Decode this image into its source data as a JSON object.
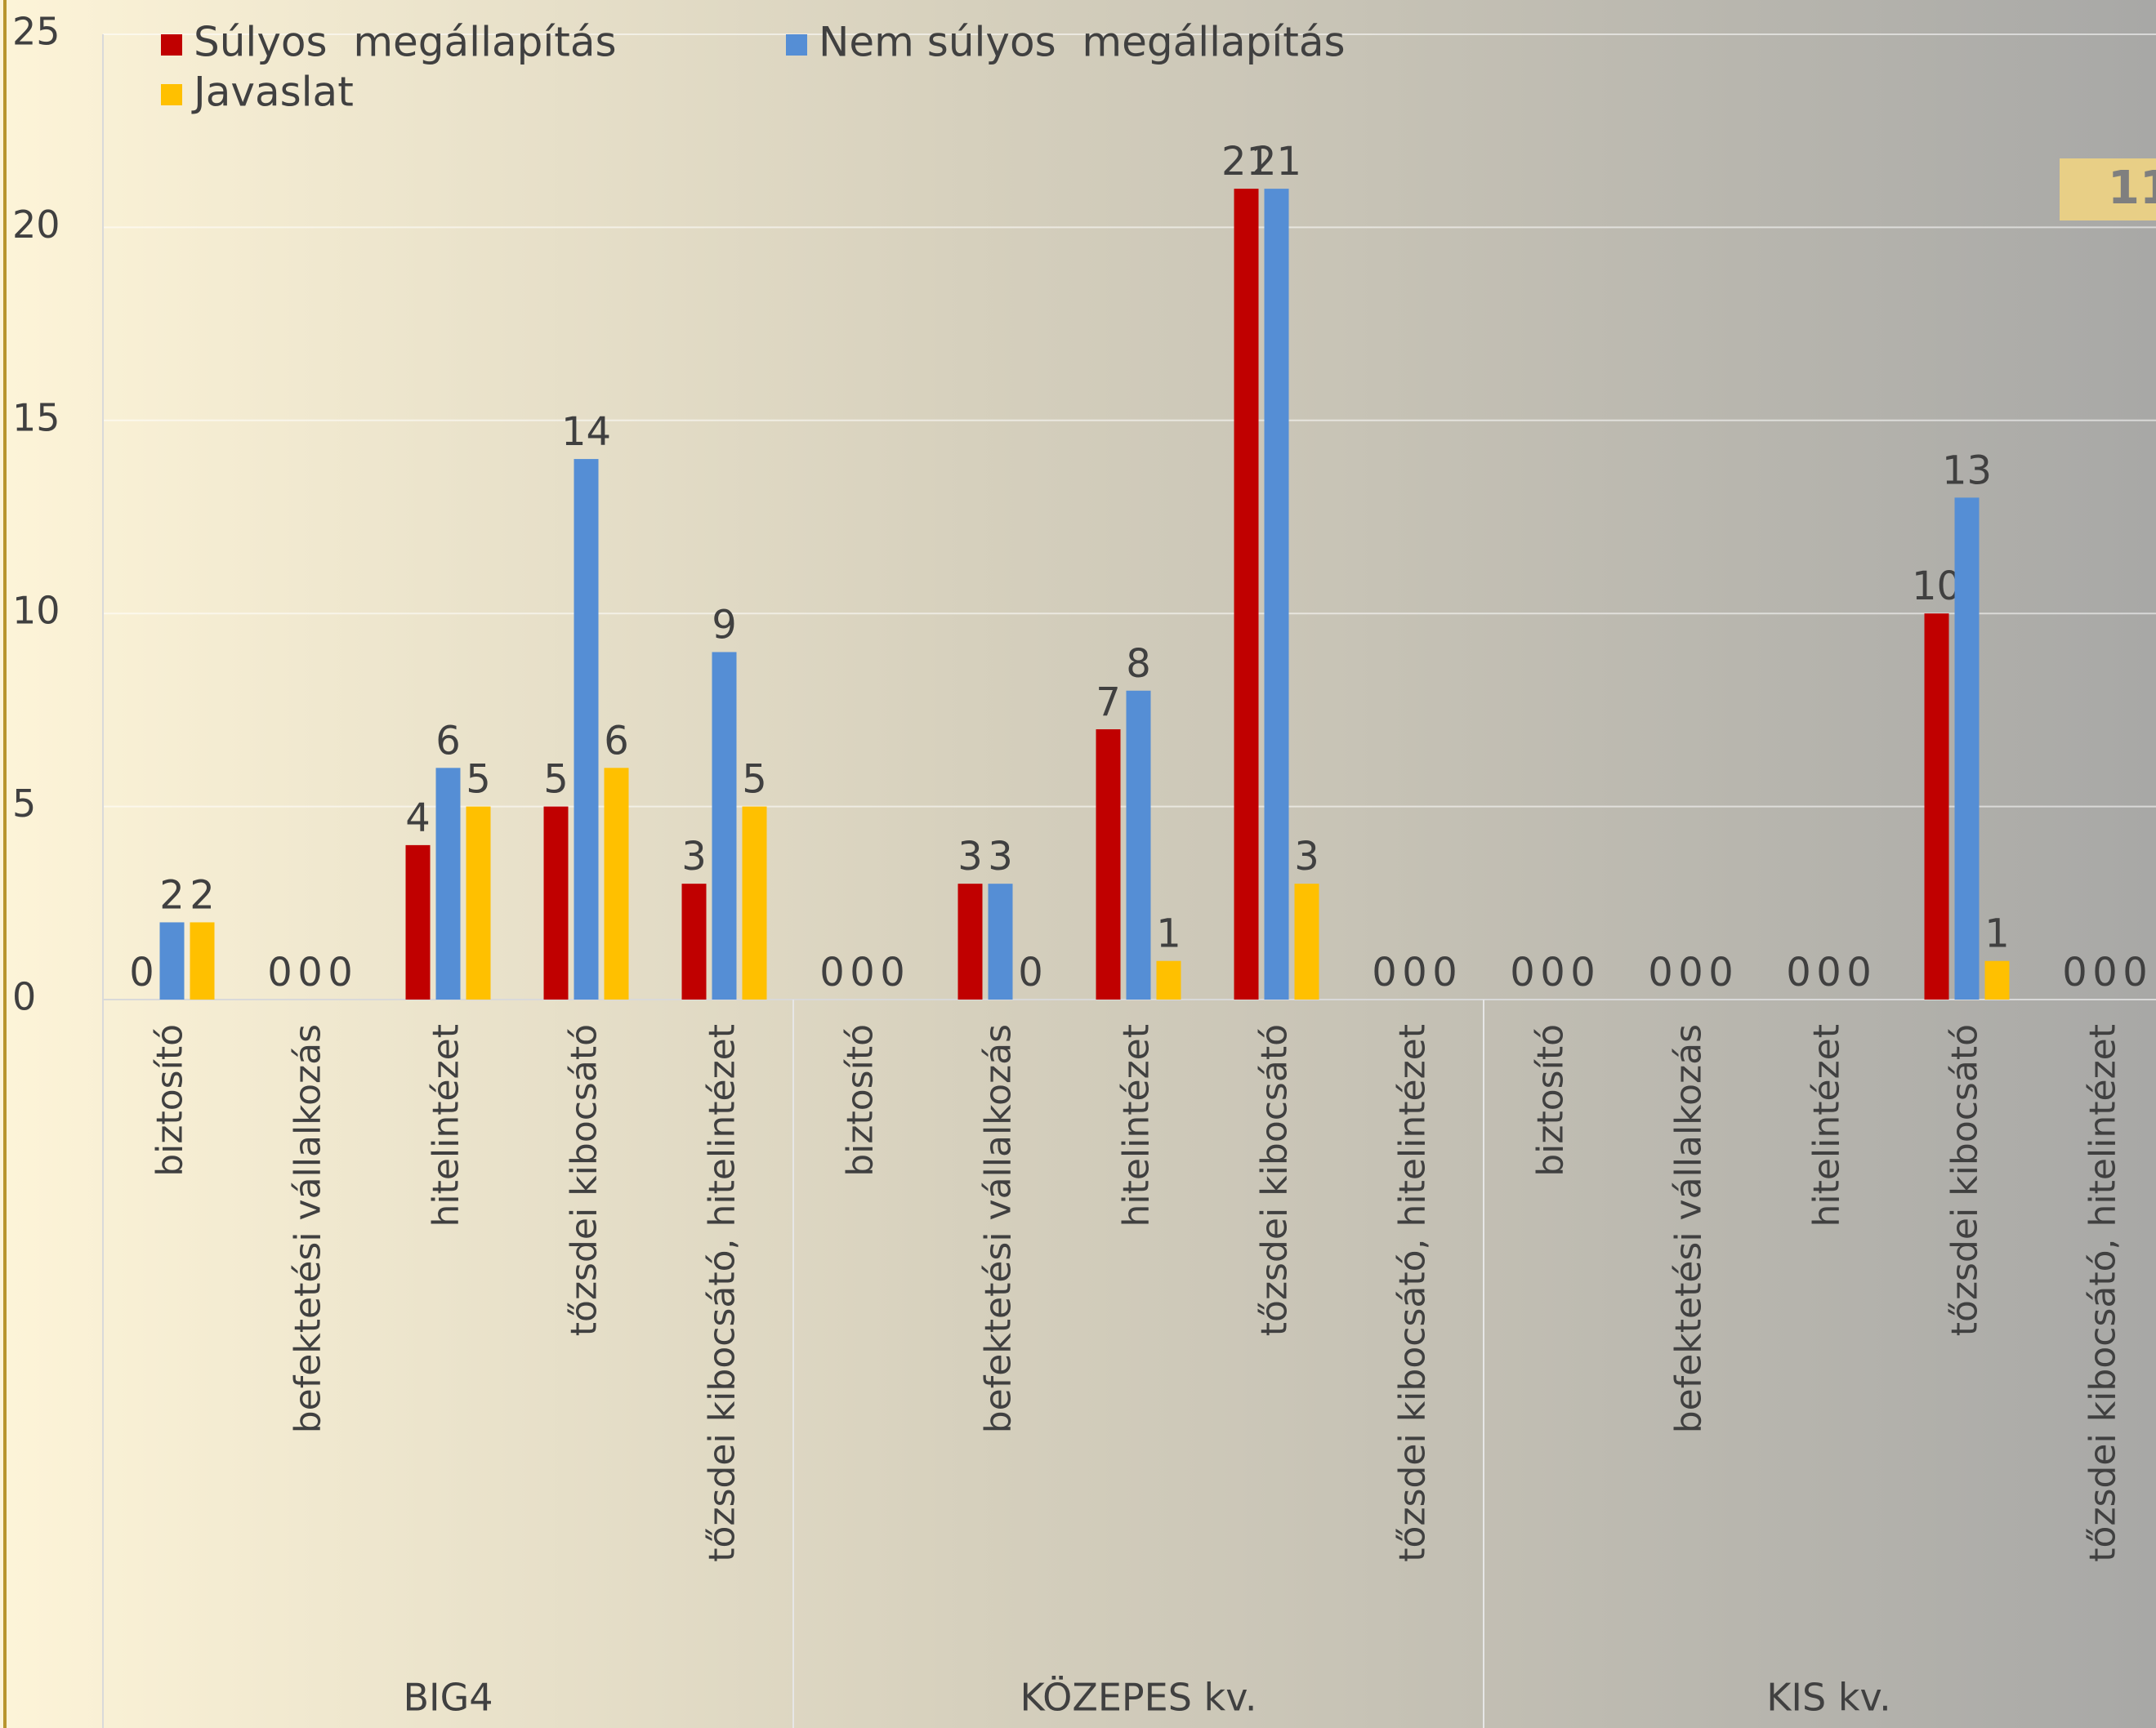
{
  "chart_data": {
    "type": "bar",
    "categories": [
      "biztosító",
      "befektetési vállalkozás",
      "hitelintézet",
      "tőzsdei kibocsátó",
      "tőzsdei kibocsátó, hitelintézet",
      "biztosító",
      "befektetési vállalkozás",
      "hitelintézet",
      "tőzsdei kibocsátó",
      "tőzsdei kibocsátó, hitelintézet",
      "biztosító",
      "befektetési vállalkozás",
      "hitelintézet",
      "tőzsdei kibocsátó",
      "tőzsdei kibocsátó, hitelintézet"
    ],
    "groups": [
      "BIG4",
      "KÖZEPES kv.",
      "KIS kv."
    ],
    "series": [
      {
        "name": "Súlyos  megállapítás",
        "color": "#c00000",
        "values": [
          0,
          0,
          4,
          5,
          3,
          0,
          3,
          7,
          21,
          0,
          0,
          0,
          0,
          10,
          0
        ]
      },
      {
        "name": "Nem súlyos  megállapítás",
        "color": "#558ed5",
        "values": [
          2,
          0,
          6,
          14,
          9,
          0,
          3,
          8,
          21,
          0,
          0,
          0,
          0,
          13,
          0
        ]
      },
      {
        "name": "Javaslat",
        "color": "#ffc000",
        "values": [
          2,
          0,
          5,
          6,
          5,
          0,
          0,
          1,
          3,
          0,
          0,
          0,
          0,
          1,
          0
        ]
      }
    ],
    "ylim": [
      0,
      25
    ],
    "yticks": [
      0,
      5,
      10,
      15,
      20,
      25
    ],
    "grid": true,
    "annotation": "11"
  }
}
